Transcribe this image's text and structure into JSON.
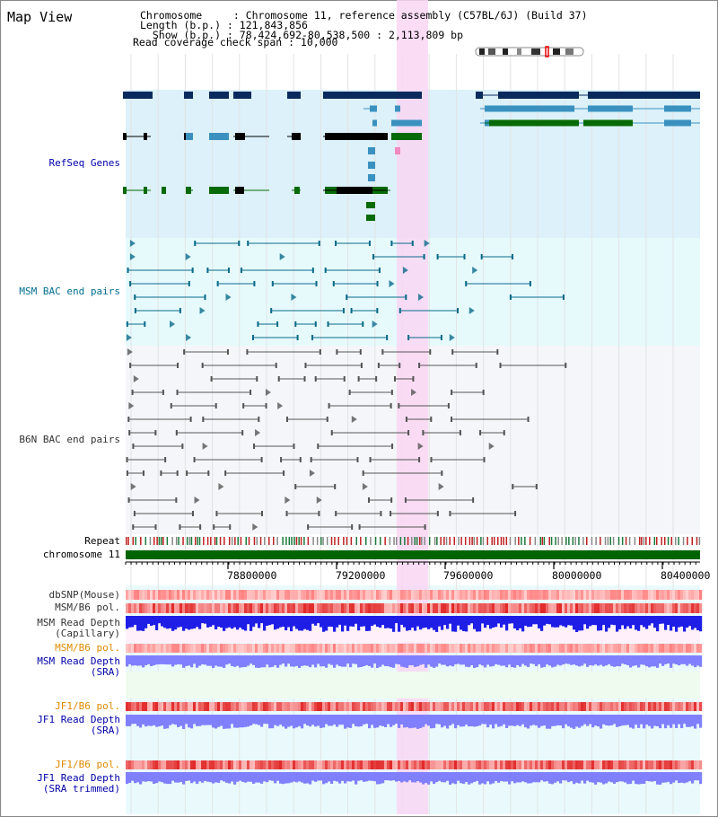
{
  "view": {
    "title": "Map View",
    "info_lines": [
      "Chromosome     : Chromosome 11, reference assembly (C57BL/6J) (Build 37)",
      "Length (b.p.) : 121,843,856",
      "  Show (b.p.) : 78,424,692-80,538,500 : 2,113,809 bp",
      "Read coverage check span : 10,000"
    ]
  },
  "tracks": {
    "refseq": "RefSeq Genes",
    "msm_bac": "MSM BAC end pairs",
    "b6n_bac": "B6N BAC end pairs",
    "repeat": "Repeat",
    "chromosome": "chromosome 11",
    "dbsnp": "dbSNP(Mouse)",
    "msm_b6_pol_1": "MSM/B6 pol.",
    "msm_read_depth_cap_1": "MSM Read Depth",
    "msm_read_depth_cap_2": "(Capillary)",
    "msm_b6_pol_2": "MSM/B6 pol.",
    "msm_read_depth_sra_1": "MSM Read Depth",
    "msm_read_depth_sra_2": "(SRA)",
    "jf1_b6_pol_1": "JF1/B6 pol.",
    "jf1_read_depth_1": "JF1 Read Depth",
    "jf1_read_depth_2": "(SRA)",
    "jf1_b6_pol_2": "JF1/B6 pol.",
    "jf1_read_depth_trim_1": "JF1 Read Depth",
    "jf1_read_depth_trim_2": "(SRA trimmed)"
  },
  "axis": {
    "ticks": [
      "78800000",
      "79200000",
      "79600000",
      "80000000",
      "80400000"
    ]
  },
  "colors": {
    "highlight": "#f9d6f3",
    "refseq_bg": "#dcf1f9",
    "msm_bg": "#e6fafc",
    "b6n_bg": "#f4f6f9",
    "navy": "#0a2a5e",
    "teal": "#3a91c0",
    "green": "#066a06",
    "label_blue": "#0000aa",
    "label_teal": "#006f8f",
    "label_orange": "#e08a00",
    "depth_blue": "#1e1ee6",
    "depth_light": "#8080ff"
  }
}
